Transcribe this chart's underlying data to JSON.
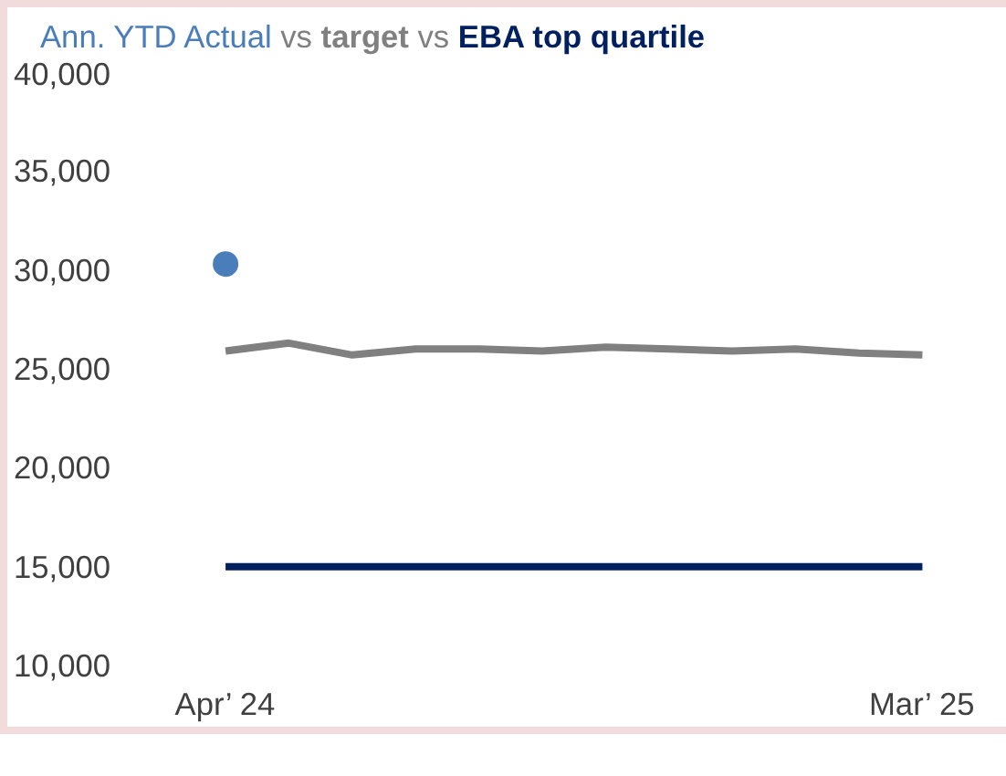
{
  "chart_data": {
    "type": "line",
    "categories": [
      "Apr’ 24",
      null,
      null,
      null,
      null,
      null,
      null,
      null,
      null,
      null,
      null,
      "Mar’ 25"
    ],
    "series": [
      {
        "name": "Ann. YTD Actual",
        "color": "#4a7ebb",
        "type": "scatter",
        "values": [
          30300,
          null,
          null,
          null,
          null,
          null,
          null,
          null,
          null,
          null,
          null,
          null
        ]
      },
      {
        "name": "target",
        "color": "#808080",
        "values": [
          25900,
          26300,
          25700,
          26000,
          26000,
          25900,
          26100,
          26000,
          25900,
          26000,
          25800,
          25700
        ]
      },
      {
        "name": "EBA top quartile",
        "color": "#002060",
        "values": [
          15000,
          15000,
          15000,
          15000,
          15000,
          15000,
          15000,
          15000,
          15000,
          15000,
          15000,
          15000
        ]
      }
    ],
    "annotations": [
      "vs",
      "vs"
    ],
    "ylim": [
      10000,
      40000
    ],
    "yticks": [
      {
        "value": 10000,
        "label": "10,000"
      },
      {
        "value": 15000,
        "label": "15,000"
      },
      {
        "value": 20000,
        "label": "20,000"
      },
      {
        "value": 25000,
        "label": "25,000"
      },
      {
        "value": 30000,
        "label": "30,000"
      },
      {
        "value": 35000,
        "label": "35,000"
      },
      {
        "value": 40000,
        "label": "40,000"
      }
    ],
    "grid": false
  }
}
